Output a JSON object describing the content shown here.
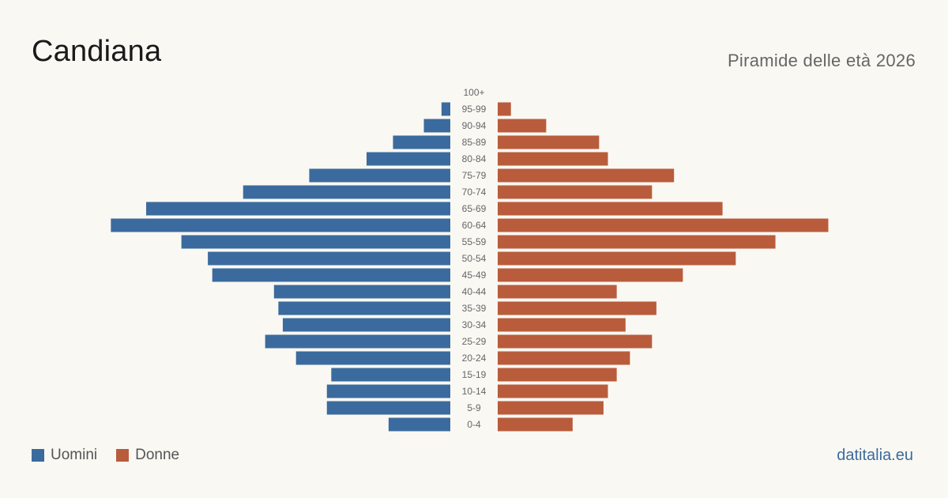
{
  "header": {
    "title": "Candiana",
    "subtitle": "Piramide delle età 2026"
  },
  "legend": {
    "men_label": "Uomini",
    "women_label": "Donne"
  },
  "brand": "datitalia.eu",
  "colors": {
    "men": "#3b6b9e",
    "women": "#b95c3c",
    "background": "#faf8f3"
  },
  "chart_data": {
    "type": "bar",
    "orientation": "horizontal-pyramid",
    "categories": [
      "100+",
      "95-99",
      "90-94",
      "85-89",
      "80-84",
      "75-79",
      "70-74",
      "65-69",
      "60-64",
      "55-59",
      "50-54",
      "45-49",
      "40-44",
      "35-39",
      "30-34",
      "25-29",
      "20-24",
      "15-19",
      "10-14",
      "5-9",
      "0-4"
    ],
    "series": [
      {
        "name": "Uomini",
        "values": [
          0,
          2,
          6,
          13,
          19,
          32,
          47,
          69,
          77,
          61,
          55,
          54,
          40,
          39,
          38,
          42,
          35,
          27,
          28,
          28,
          14
        ]
      },
      {
        "name": "Donne",
        "values": [
          0,
          3,
          11,
          23,
          25,
          40,
          35,
          51,
          75,
          63,
          54,
          42,
          27,
          36,
          29,
          35,
          30,
          27,
          25,
          24,
          17
        ]
      }
    ]
  }
}
